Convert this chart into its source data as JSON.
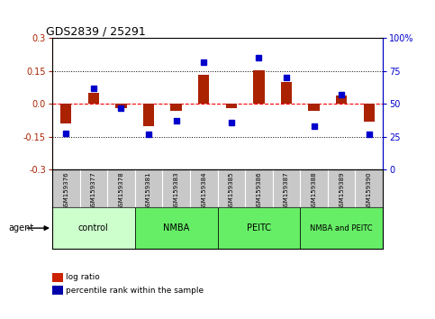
{
  "title": "GDS2839 / 25291",
  "samples": [
    "GSM159376",
    "GSM159377",
    "GSM159378",
    "GSM159381",
    "GSM159383",
    "GSM159384",
    "GSM159385",
    "GSM159386",
    "GSM159387",
    "GSM159388",
    "GSM159389",
    "GSM159390"
  ],
  "log_ratio": [
    -0.09,
    0.05,
    -0.02,
    -0.1,
    -0.03,
    0.135,
    -0.02,
    0.155,
    0.1,
    -0.03,
    0.04,
    -0.08
  ],
  "percentile_rank": [
    28,
    62,
    47,
    27,
    37,
    82,
    36,
    85,
    70,
    33,
    57,
    27
  ],
  "groups": [
    {
      "label": "control",
      "start": 0,
      "end": 3,
      "color": "#ccffcc"
    },
    {
      "label": "NMBA",
      "start": 3,
      "end": 6,
      "color": "#66ee66"
    },
    {
      "label": "PEITC",
      "start": 6,
      "end": 9,
      "color": "#66ee66"
    },
    {
      "label": "NMBA and PEITC",
      "start": 9,
      "end": 12,
      "color": "#66ee66"
    }
  ],
  "ylim_left": [
    -0.3,
    0.3
  ],
  "ylim_right": [
    0,
    100
  ],
  "yticks_left": [
    -0.3,
    -0.15,
    0.0,
    0.15,
    0.3
  ],
  "yticks_right": [
    0,
    25,
    50,
    75,
    100
  ],
  "bar_color": "#aa2200",
  "dot_color": "#0000cc",
  "bar_width": 0.4,
  "marker_size": 5
}
